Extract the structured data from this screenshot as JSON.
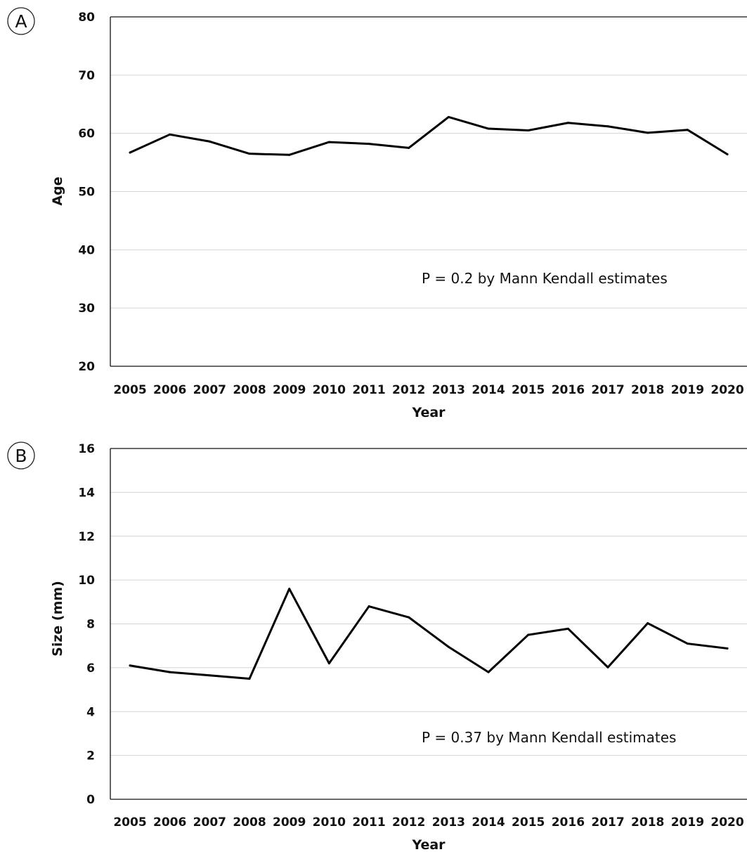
{
  "chart_data": [
    {
      "panel_label": "A",
      "type": "line",
      "xlabel": "Year",
      "ylabel": "Age",
      "ylim": [
        20,
        80
      ],
      "yticks": [
        20,
        30,
        40,
        50,
        60,
        70,
        80
      ],
      "grid": true,
      "categories": [
        "2005",
        "2006",
        "2007",
        "2008",
        "2009",
        "2010",
        "2011",
        "2012",
        "2013",
        "2014",
        "2015",
        "2016",
        "2017",
        "2018",
        "2019",
        "2020"
      ],
      "series": [
        {
          "values": [
            56.7,
            59.8,
            58.6,
            56.5,
            56.3,
            58.5,
            58.2,
            57.5,
            62.8,
            60.8,
            60.5,
            61.8,
            61.2,
            60.1,
            60.6,
            56.4
          ]
        }
      ],
      "annotation": "P = 0.2 by Mann Kendall estimates",
      "line_color": "#000000"
    },
    {
      "panel_label": "B",
      "type": "line",
      "xlabel": "Year",
      "ylabel": "Size (mm)",
      "ylim": [
        0,
        16
      ],
      "yticks": [
        0,
        2,
        4,
        6,
        8,
        10,
        12,
        14,
        16
      ],
      "grid": true,
      "categories": [
        "2005",
        "2006",
        "2007",
        "2008",
        "2009",
        "2010",
        "2011",
        "2012",
        "2013",
        "2014",
        "2015",
        "2016",
        "2017",
        "2018",
        "2019",
        "2020"
      ],
      "series": [
        {
          "values": [
            6.1,
            5.8,
            5.65,
            5.5,
            9.6,
            6.2,
            8.8,
            8.3,
            6.95,
            5.8,
            7.5,
            7.78,
            6.02,
            8.03,
            7.1,
            6.88
          ]
        }
      ],
      "annotation": "P = 0.37 by Mann Kendall estimates",
      "line_color": "#000000"
    }
  ]
}
